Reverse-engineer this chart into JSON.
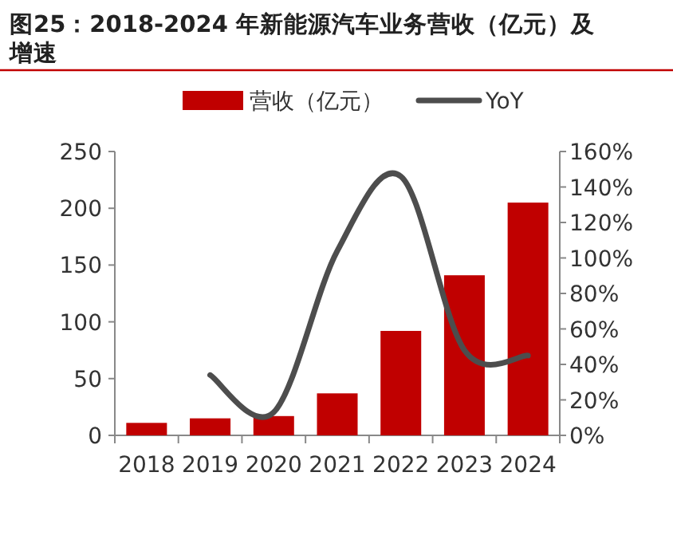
{
  "chart_data": {
    "type": "bar",
    "title": "图25：2018-2024 年新能源汽车业务营收（亿元）及增速",
    "categories": [
      "2018",
      "2019",
      "2020",
      "2021",
      "2022",
      "2023",
      "2024"
    ],
    "series": [
      {
        "name": "营收（亿元）",
        "color": "#c00000",
        "values": [
          11,
          15,
          17,
          37,
          92,
          141,
          205
        ]
      },
      {
        "name": "YoY",
        "type": "line",
        "color": "#4d4d4d",
        "axis": "y2",
        "values": [
          null,
          34,
          13,
          104,
          146,
          48,
          45
        ]
      }
    ],
    "ylim": [
      0,
      250
    ],
    "yticks": [
      0,
      50,
      100,
      150,
      200,
      250
    ],
    "y2lim": [
      0,
      160
    ],
    "y2ticks": [
      {
        "value": 0,
        "label": "0%"
      },
      {
        "value": 20,
        "label": "20%"
      },
      {
        "value": 40,
        "label": "40%"
      },
      {
        "value": 60,
        "label": "60%"
      },
      {
        "value": 80,
        "label": "80%"
      },
      {
        "value": 100,
        "label": "100%"
      },
      {
        "value": 120,
        "label": "120%"
      },
      {
        "value": 140,
        "label": "140%"
      },
      {
        "value": 160,
        "label": "160%"
      }
    ],
    "legend": "top",
    "grid": false
  }
}
